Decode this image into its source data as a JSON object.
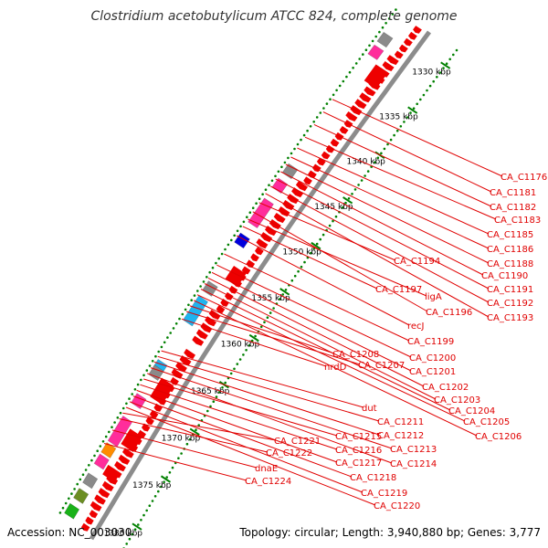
{
  "title": "Clostridium acetobutylicum ATCC 824, complete genome",
  "accession": "Accession: NC_003030",
  "topology": "Topology: circular; Length: 3,940,880 bp; Genes: 3,777",
  "scale_unit": "kbp",
  "ticks": [
    {
      "kbp": 1330,
      "label": "1330 kbp"
    },
    {
      "kbp": 1335,
      "label": "1335 kbp"
    },
    {
      "kbp": 1340,
      "label": "1340 kbp"
    },
    {
      "kbp": 1345,
      "label": "1345 kbp"
    },
    {
      "kbp": 1350,
      "label": "1350 kbp"
    },
    {
      "kbp": 1355,
      "label": "1355 kbp"
    },
    {
      "kbp": 1360,
      "label": "1360 kbp"
    },
    {
      "kbp": 1365,
      "label": "1365 kbp"
    },
    {
      "kbp": 1370,
      "label": "1370 kbp"
    },
    {
      "kbp": 1375,
      "label": "1375 kbp"
    },
    {
      "kbp": 1380,
      "label": "1380 kbp"
    }
  ],
  "colors": {
    "cds": "#ee0000",
    "backbone": "#8c8c8c",
    "leader": "#e00000",
    "tick_dots": "#008000",
    "feature_pink": "#ff2d9b",
    "feature_gray": "#8a8a8a",
    "feature_cyan": "#1fb4f0",
    "feature_blue": "#0000dd",
    "feature_orange": "#ff8c00",
    "feature_olive": "#6b8e23",
    "feature_green": "#19b219"
  },
  "genes": [
    {
      "label": "CA_C1176",
      "kbp": 1338.2
    },
    {
      "label": "CA_C1181",
      "kbp": 1339.6
    },
    {
      "label": "CA_C1182",
      "kbp": 1341.0
    },
    {
      "label": "CA_C1183",
      "kbp": 1342.4
    },
    {
      "label": "CA_C1185",
      "kbp": 1343.6
    },
    {
      "label": "CA_C1186",
      "kbp": 1344.6
    },
    {
      "label": "CA_C1188",
      "kbp": 1345.4
    },
    {
      "label": "CA_C1190",
      "kbp": 1346.2
    },
    {
      "label": "CA_C1191",
      "kbp": 1347.0
    },
    {
      "label": "CA_C1192",
      "kbp": 1347.8
    },
    {
      "label": "CA_C1193",
      "kbp": 1348.6
    },
    {
      "label": "CA_C1194",
      "kbp": 1349.6
    },
    {
      "label": "CA_C1196",
      "kbp": 1350.6
    },
    {
      "label": "ligA",
      "kbp": 1351.4
    },
    {
      "label": "CA_C1197",
      "kbp": 1352.2
    },
    {
      "label": "recJ",
      "kbp": 1353.2
    },
    {
      "label": "CA_C1199",
      "kbp": 1355.2
    },
    {
      "label": "CA_C1200",
      "kbp": 1356.4
    },
    {
      "label": "CA_C1201",
      "kbp": 1357.2
    },
    {
      "label": "CA_C1202",
      "kbp": 1357.8
    },
    {
      "label": "CA_C1203",
      "kbp": 1358.4
    },
    {
      "label": "CA_C1204",
      "kbp": 1359.0
    },
    {
      "label": "CA_C1205",
      "kbp": 1359.6
    },
    {
      "label": "CA_C1206",
      "kbp": 1360.2
    },
    {
      "label": "CA_C1208",
      "kbp": 1360.8
    },
    {
      "label": "CA_C1207",
      "kbp": 1361.4
    },
    {
      "label": "nrdD",
      "kbp": 1362.2
    },
    {
      "label": "dut",
      "kbp": 1365.6
    },
    {
      "label": "CA_C1211",
      "kbp": 1366.2
    },
    {
      "label": "CA_C1212",
      "kbp": 1366.8
    },
    {
      "label": "CA_C1213",
      "kbp": 1367.4
    },
    {
      "label": "CA_C1214",
      "kbp": 1368.0
    },
    {
      "label": "CA_C1215",
      "kbp": 1368.6
    },
    {
      "label": "CA_C1216",
      "kbp": 1369.2
    },
    {
      "label": "CA_C1217",
      "kbp": 1369.8
    },
    {
      "label": "CA_C1218",
      "kbp": 1370.4
    },
    {
      "label": "CA_C1219",
      "kbp": 1371.0
    },
    {
      "label": "CA_C1220",
      "kbp": 1371.6
    },
    {
      "label": "CA_C1221",
      "kbp": 1372.2
    },
    {
      "label": "CA_C1222",
      "kbp": 1372.8
    },
    {
      "label": "dnaE",
      "kbp": 1374.0
    },
    {
      "label": "CA_C1224",
      "kbp": 1375.4
    }
  ],
  "features": [
    {
      "kbp": 1330.6,
      "color": "feature_gray",
      "type": "block"
    },
    {
      "kbp": 1332.0,
      "color": "feature_pink",
      "type": "block"
    },
    {
      "kbp": 1345.2,
      "color": "feature_gray",
      "type": "block"
    },
    {
      "kbp": 1346.8,
      "color": "feature_pink",
      "type": "block"
    },
    {
      "kbp": 1349.0,
      "color": "feature_pink",
      "type": "long"
    },
    {
      "kbp": 1352.8,
      "color": "feature_blue",
      "type": "block"
    },
    {
      "kbp": 1358.0,
      "color": "feature_gray",
      "type": "block"
    },
    {
      "kbp": 1359.6,
      "color": "feature_cyan",
      "type": "long"
    },
    {
      "kbp": 1366.4,
      "color": "feature_cyan",
      "type": "block"
    },
    {
      "kbp": 1367.0,
      "color": "feature_gray",
      "type": "block"
    },
    {
      "kbp": 1370.0,
      "color": "feature_pink",
      "type": "block"
    },
    {
      "kbp": 1372.4,
      "color": "feature_pink",
      "type": "long"
    },
    {
      "kbp": 1375.2,
      "color": "feature_orange",
      "type": "block"
    },
    {
      "kbp": 1376.4,
      "color": "feature_pink",
      "type": "block"
    },
    {
      "kbp": 1378.4,
      "color": "feature_gray",
      "type": "block"
    },
    {
      "kbp": 1380.0,
      "color": "feature_olive",
      "type": "block"
    },
    {
      "kbp": 1381.6,
      "color": "feature_green",
      "type": "block"
    }
  ]
}
